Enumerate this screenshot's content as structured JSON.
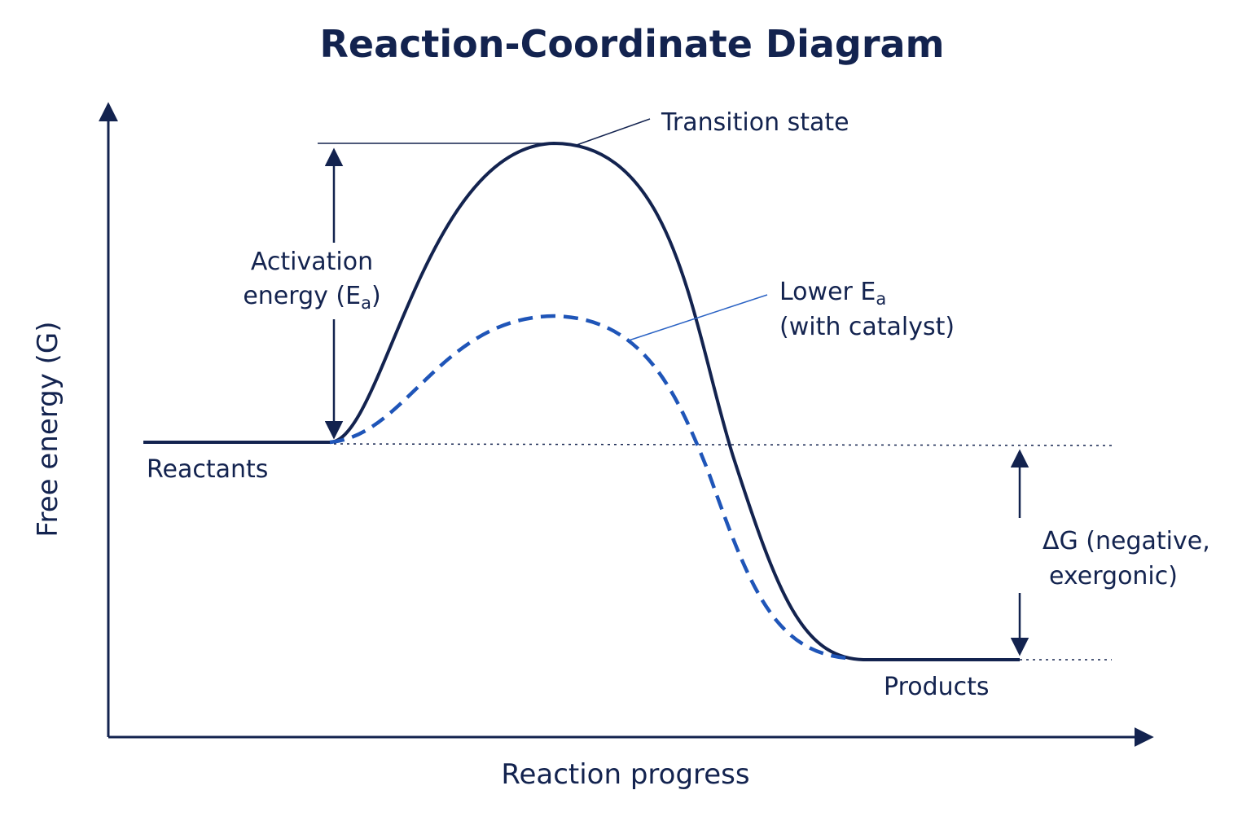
{
  "title": "Reaction-Coordinate Diagram",
  "axes": {
    "x_label": "Reaction progress",
    "y_label": "Free energy (G)"
  },
  "labels": {
    "transition_state": "Transition state",
    "activation_line1": "Activation",
    "activation_line2": "energy (E",
    "activation_sub": "a",
    "activation_close": ")",
    "lower_line1": "Lower E",
    "lower_sub": "a",
    "lower_line2": "(with catalyst)",
    "reactants": "Reactants",
    "products": "Products",
    "delta_line1": "ΔG (negative,",
    "delta_line2": "exergonic)"
  },
  "colors": {
    "navy": "#13234f",
    "catalyst_blue": "#1f55b8",
    "leader_blue": "#2b63c4",
    "background": "#ffffff"
  }
}
